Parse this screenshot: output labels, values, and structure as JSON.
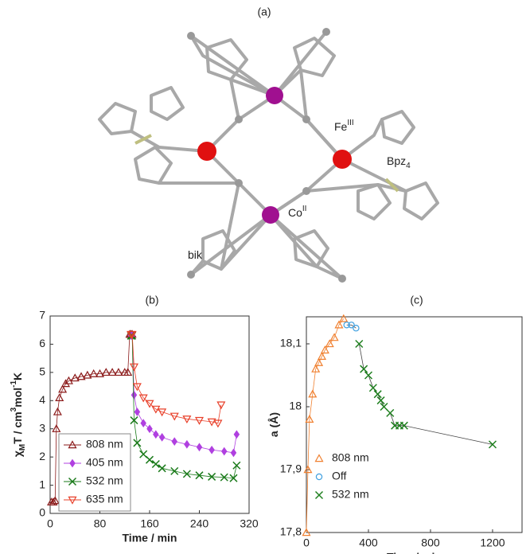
{
  "structure": {
    "panel_label": "(a)",
    "labels": [
      [
        {
          "text": "Fe"
        },
        {
          "text": "III",
          "shift": "super"
        }
      ],
      [
        {
          "text": "Bpz"
        },
        {
          "text": "4",
          "shift": "sub"
        }
      ],
      [
        {
          "text": "Co"
        },
        {
          "text": "II",
          "shift": "super"
        }
      ],
      [
        {
          "text": "bik"
        }
      ]
    ]
  },
  "chart_data": [
    {
      "type": "line",
      "panel_label": "(b)",
      "xlabel": "Time / min",
      "ylabel": [
        {
          "text": "χ"
        },
        {
          "text": "M",
          "shift": "sub"
        },
        {
          "text": "T / cm"
        },
        {
          "text": "3",
          "shift": "super"
        },
        {
          "text": "mol"
        },
        {
          "text": "-1",
          "shift": "super"
        },
        {
          "text": "K"
        }
      ],
      "xlim": [
        0,
        320
      ],
      "xticks": [
        0,
        80,
        160,
        240,
        320
      ],
      "ylim": [
        0,
        7
      ],
      "yticks": [
        0,
        1,
        2,
        3,
        4,
        5,
        6,
        7
      ],
      "grid": false,
      "legend": "lower left",
      "legend_frame": true,
      "series": [
        {
          "name": "808 nm",
          "color": "#8b1a1a",
          "marker": "triangle",
          "x": [
            2,
            5,
            8,
            10,
            12,
            15,
            20,
            25,
            30,
            40,
            50,
            60,
            70,
            80,
            90,
            100,
            110,
            120,
            125,
            128,
            130,
            132
          ],
          "values": [
            0.4,
            0.4,
            0.45,
            3.0,
            3.6,
            4.1,
            4.4,
            4.6,
            4.7,
            4.8,
            4.85,
            4.9,
            4.95,
            4.95,
            5.0,
            5.0,
            5.0,
            5.0,
            5.0,
            6.35,
            6.35,
            6.35
          ]
        },
        {
          "name": "405 nm",
          "color": "#b040e0",
          "marker": "diamond",
          "x": [
            130,
            132,
            135,
            140,
            150,
            160,
            170,
            180,
            200,
            220,
            240,
            260,
            280,
            295,
            300
          ],
          "values": [
            6.3,
            6.3,
            4.2,
            3.6,
            3.2,
            3.0,
            2.8,
            2.7,
            2.55,
            2.45,
            2.35,
            2.25,
            2.2,
            2.15,
            2.8
          ]
        },
        {
          "name": "532 nm",
          "color": "#1a7a1a",
          "marker": "cross",
          "x": [
            130,
            132,
            135,
            140,
            150,
            160,
            170,
            180,
            200,
            220,
            240,
            260,
            280,
            295,
            300
          ],
          "values": [
            6.3,
            6.3,
            3.3,
            2.5,
            2.1,
            1.9,
            1.75,
            1.6,
            1.5,
            1.4,
            1.35,
            1.3,
            1.28,
            1.25,
            1.7
          ]
        },
        {
          "name": "635 nm",
          "color": "#e8402a",
          "marker": "down-triangle",
          "x": [
            130,
            132,
            135,
            140,
            150,
            160,
            170,
            180,
            200,
            220,
            240,
            260,
            270,
            275
          ],
          "values": [
            6.35,
            6.35,
            5.2,
            4.5,
            4.1,
            3.9,
            3.7,
            3.6,
            3.45,
            3.35,
            3.3,
            3.25,
            3.2,
            3.85
          ]
        }
      ]
    },
    {
      "type": "line",
      "panel_label": "(c)",
      "xlabel": "Time / min",
      "ylabel": [
        {
          "text": "a (Å)"
        }
      ],
      "xlim": [
        0,
        1390
      ],
      "xticks": [
        0,
        400,
        800,
        1200
      ],
      "ylim": [
        17.8,
        18.143
      ],
      "yticks": [
        {
          "value": 17.8,
          "label": "17,8"
        },
        {
          "value": 17.9,
          "label": "17,9"
        },
        18,
        {
          "value": 18.1,
          "label": "18,1"
        }
      ],
      "grid": false,
      "legend": "lower left",
      "legend_frame": false,
      "series": [
        {
          "name": "808 nm",
          "color": "#f08030",
          "marker": "triangle",
          "x": [
            0,
            10,
            20,
            40,
            60,
            80,
            100,
            120,
            150,
            180,
            210,
            240
          ],
          "values": [
            17.8,
            17.9,
            17.98,
            18.02,
            18.06,
            18.07,
            18.08,
            18.09,
            18.1,
            18.11,
            18.13,
            18.14
          ]
        },
        {
          "name": "Off",
          "color": "#40a0e0",
          "marker": "circle",
          "x": [
            260,
            290,
            320
          ],
          "values": [
            18.13,
            18.13,
            18.125
          ]
        },
        {
          "name": "532 nm",
          "color": "#208020",
          "marker": "cross",
          "x": [
            340,
            370,
            400,
            430,
            460,
            480,
            500,
            540,
            570,
            600,
            630,
            1200
          ],
          "values": [
            18.1,
            18.06,
            18.05,
            18.03,
            18.02,
            18.01,
            18.0,
            17.99,
            17.97,
            17.97,
            17.97,
            17.94
          ]
        }
      ]
    }
  ]
}
